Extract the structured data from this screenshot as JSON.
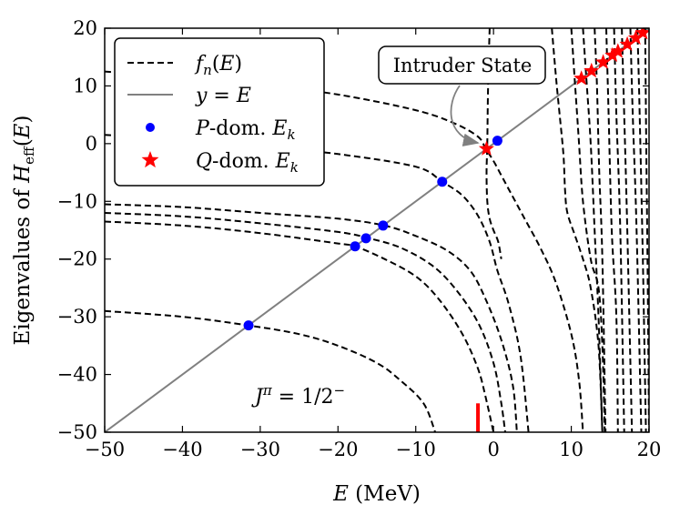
{
  "chart_data": {
    "type": "line",
    "title": "",
    "xlabel": "E (MeV)",
    "ylabel": "Eigenvalues of H_eff(E)",
    "xlim": [
      -50,
      20
    ],
    "ylim": [
      -50,
      20
    ],
    "xticks": [
      -50,
      -40,
      -30,
      -20,
      -10,
      0,
      10,
      20
    ],
    "yticks": [
      -50,
      -40,
      -30,
      -20,
      -10,
      0,
      10,
      20
    ],
    "xtick_labels": [
      "−50",
      "−40",
      "−30",
      "−20",
      "−10",
      "0",
      "10",
      "20"
    ],
    "ytick_labels": [
      "−50",
      "−40",
      "−30",
      "−20",
      "−10",
      "0",
      "10",
      "20"
    ],
    "grid": false,
    "legend_position": "top-left",
    "legend": [
      {
        "label": "f_n(E)",
        "style": "dashed",
        "color": "#000000"
      },
      {
        "label": "y = E",
        "style": "solid",
        "color": "#808080"
      },
      {
        "label": "P-dom. E_k",
        "style": "circle-marker",
        "color": "#0000ff"
      },
      {
        "label": "Q-dom. E_k",
        "style": "star-marker",
        "color": "#ff0000"
      }
    ],
    "series": [
      {
        "name": "f_n(E)",
        "style": "dashed",
        "color": "#000000",
        "curves": [
          {
            "points": [
              [
                -50,
                12.5
              ],
              [
                -40,
                11.5
              ],
              [
                -30,
                10.2
              ],
              [
                -20,
                8.5
              ],
              [
                -10,
                5.8
              ],
              [
                -5,
                3.5
              ],
              [
                -2,
                1.2
              ],
              [
                -1,
                -0.9
              ],
              [
                0,
                -3
              ],
              [
                1,
                -5.5
              ],
              [
                2,
                -8
              ],
              [
                4,
                -13
              ],
              [
                6,
                -18
              ],
              [
                8,
                -24
              ],
              [
                10,
                -33
              ],
              [
                11,
                -41
              ],
              [
                11.5,
                -50
              ]
            ]
          },
          {
            "points": [
              [
                -50,
                1.5
              ],
              [
                -40,
                0.8
              ],
              [
                -30,
                -0.5
              ],
              [
                -20,
                -1.8
              ],
              [
                -10,
                -4
              ],
              [
                -6.6,
                -6.6
              ],
              [
                -4,
                -9
              ],
              [
                -2,
                -12.5
              ],
              [
                -0.5,
                -17
              ],
              [
                0.5,
                -22
              ],
              [
                2,
                -28
              ],
              [
                3.5,
                -37
              ],
              [
                4.5,
                -50
              ]
            ]
          },
          {
            "points": [
              [
                -50,
                -10.5
              ],
              [
                -40,
                -11
              ],
              [
                -30,
                -12
              ],
              [
                -20,
                -13
              ],
              [
                -14,
                -14.2
              ],
              [
                -10,
                -16
              ],
              [
                -6,
                -18.5
              ],
              [
                -3,
                -22
              ],
              [
                -1,
                -27
              ],
              [
                1,
                -34
              ],
              [
                2.5,
                -42
              ],
              [
                3,
                -50
              ]
            ]
          },
          {
            "points": [
              [
                -50,
                -12
              ],
              [
                -40,
                -12.6
              ],
              [
                -30,
                -13.8
              ],
              [
                -20,
                -15.3
              ],
              [
                -16,
                -16.4
              ],
              [
                -12,
                -18
              ],
              [
                -8,
                -21
              ],
              [
                -5,
                -25
              ],
              [
                -2,
                -31
              ],
              [
                0,
                -38
              ],
              [
                1,
                -45
              ],
              [
                1.5,
                -50
              ]
            ]
          },
          {
            "points": [
              [
                -50,
                -13.5
              ],
              [
                -40,
                -14.2
              ],
              [
                -30,
                -15.5
              ],
              [
                -20,
                -17.3
              ],
              [
                -17.8,
                -17.8
              ],
              [
                -14,
                -20
              ],
              [
                -10,
                -23
              ],
              [
                -7,
                -27
              ],
              [
                -4,
                -33
              ],
              [
                -2,
                -39
              ],
              [
                -1,
                -44
              ],
              [
                0,
                -50
              ]
            ]
          },
          {
            "points": [
              [
                -50,
                -29
              ],
              [
                -40,
                -30
              ],
              [
                -31.5,
                -31.5
              ],
              [
                -25,
                -33
              ],
              [
                -20,
                -35
              ],
              [
                -15,
                -38
              ],
              [
                -12,
                -41
              ],
              [
                -9,
                -45
              ],
              [
                -7.5,
                -50
              ]
            ]
          },
          {
            "points": [
              [
                -0.5,
                20
              ],
              [
                -0.7,
                10
              ],
              [
                -0.8,
                0
              ],
              [
                -0.9,
                -5
              ],
              [
                -0.8,
                -10
              ],
              [
                -0.5,
                -13
              ],
              [
                0,
                -15
              ],
              [
                0.6,
                -17
              ],
              [
                1,
                -20
              ]
            ]
          },
          {
            "points": [
              [
                7.5,
                20
              ],
              [
                8,
                12
              ],
              [
                8.5,
                5
              ],
              [
                9,
                -2
              ],
              [
                9.2,
                -8
              ],
              [
                9.5,
                -12
              ],
              [
                10.5,
                -16
              ],
              [
                11.5,
                -20
              ],
              [
                12.5,
                -25
              ],
              [
                13.5,
                -35
              ],
              [
                14,
                -50
              ]
            ]
          },
          {
            "points": [
              [
                10,
                20
              ],
              [
                10.5,
                10
              ],
              [
                11,
                0
              ],
              [
                11.5,
                -10
              ],
              [
                12.5,
                -20
              ],
              [
                13.5,
                -25
              ],
              [
                14,
                -35
              ],
              [
                14.3,
                -50
              ]
            ]
          },
          {
            "points": [
              [
                11.5,
                20
              ],
              [
                12,
                10
              ],
              [
                12.5,
                0
              ],
              [
                13,
                -15
              ],
              [
                13.5,
                -30
              ],
              [
                14,
                -50
              ]
            ]
          },
          {
            "points": [
              [
                13,
                20
              ],
              [
                13.3,
                10
              ],
              [
                13.6,
                -5
              ],
              [
                14,
                -20
              ],
              [
                14.4,
                -50
              ]
            ]
          },
          {
            "points": [
              [
                14.5,
                20
              ],
              [
                14.8,
                5
              ],
              [
                15.2,
                -15
              ],
              [
                15.8,
                -30
              ],
              [
                16,
                -50
              ]
            ]
          },
          {
            "points": [
              [
                15.5,
                20
              ],
              [
                15.8,
                5
              ],
              [
                16.3,
                -15
              ],
              [
                16.8,
                -50
              ]
            ]
          },
          {
            "points": [
              [
                16.5,
                20
              ],
              [
                16.8,
                5
              ],
              [
                17.2,
                -15
              ],
              [
                17.8,
                -50
              ]
            ]
          },
          {
            "points": [
              [
                17.6,
                20
              ],
              [
                17.9,
                5
              ],
              [
                18.4,
                -15
              ],
              [
                19,
                -50
              ]
            ]
          },
          {
            "points": [
              [
                18.5,
                20
              ],
              [
                18.8,
                5
              ],
              [
                19.2,
                -20
              ],
              [
                19.6,
                -50
              ]
            ]
          },
          {
            "points": [
              [
                19.5,
                20
              ],
              [
                19.6,
                5
              ],
              [
                19.8,
                -20
              ],
              [
                20,
                -50
              ]
            ]
          }
        ]
      },
      {
        "name": "y = E",
        "style": "solid",
        "color": "#808080",
        "points": [
          [
            -50,
            -50
          ],
          [
            20,
            20
          ]
        ]
      },
      {
        "name": "P-dom. E_k",
        "marker": "circle",
        "color": "#0000ff",
        "points": [
          [
            -31.5,
            -31.5
          ],
          [
            -17.8,
            -17.8
          ],
          [
            -16.4,
            -16.4
          ],
          [
            -14.2,
            -14.2
          ],
          [
            -6.6,
            -6.6
          ],
          [
            0.5,
            0.5
          ]
        ]
      },
      {
        "name": "Q-dom. E_k",
        "marker": "star",
        "color": "#ff0000",
        "points": [
          [
            -0.9,
            -0.9
          ],
          [
            11.3,
            11.3
          ],
          [
            12.6,
            12.6
          ],
          [
            14.1,
            14.1
          ],
          [
            15.3,
            15.3
          ],
          [
            16,
            16
          ],
          [
            17.2,
            17.2
          ],
          [
            18.3,
            18.3
          ],
          [
            19.2,
            19.2
          ]
        ]
      }
    ],
    "annotations": [
      {
        "text": "Intruder State",
        "arrow_to": [
          -0.9,
          -0.9
        ]
      },
      {
        "text": "J^π = 1/2^−"
      }
    ],
    "marker_line": {
      "x": -2,
      "y_range": [
        -50,
        -45
      ],
      "color": "#ff0000"
    }
  }
}
